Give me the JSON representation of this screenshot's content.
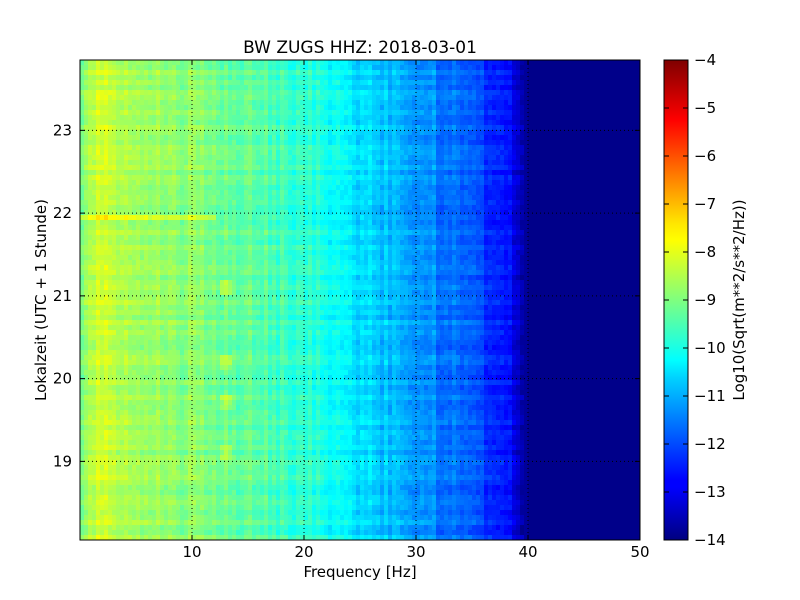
{
  "chart_data": {
    "type": "heatmap",
    "title": "BW ZUGS HHZ: 2018-03-01",
    "xlabel": "Frequency [Hz]",
    "ylabel": "Lokalzeit (UTC + 1 Stunde)",
    "xlim": [
      0,
      50
    ],
    "ylim": [
      23.85,
      18.05
    ],
    "x_ticks": [
      10,
      20,
      30,
      40,
      50
    ],
    "y_ticks": [
      19,
      20,
      21,
      22,
      23
    ],
    "grid": true,
    "colormap": "jet",
    "colorbar": {
      "label": "Log10(Sqrt(m**2/s**2/Hz))",
      "range": [
        -14,
        -4
      ],
      "ticks": [
        -14,
        -13,
        -12,
        -11,
        -10,
        -9,
        -8,
        -7,
        -6,
        -5,
        -4
      ]
    },
    "approx_mean_level_by_frequency": {
      "frequency_hz": [
        0,
        1,
        5,
        10,
        15,
        20,
        23,
        25,
        30,
        33,
        35,
        38,
        39,
        40,
        50
      ],
      "log10_value": [
        -9.3,
        -8.3,
        -8.5,
        -8.9,
        -9.3,
        -9.8,
        -10.2,
        -10.6,
        -11.2,
        -11.6,
        -12.0,
        -12.4,
        -13.0,
        -13.9,
        -13.9
      ]
    },
    "notable_features": [
      {
        "hour": 21.95,
        "description": "broadband high-amplitude streak below ~12 Hz"
      },
      {
        "frequency_hz": 13,
        "description": "intermittent bright spots at ~19.1, ~19.7, ~20.2, ~21.1 h"
      }
    ]
  }
}
